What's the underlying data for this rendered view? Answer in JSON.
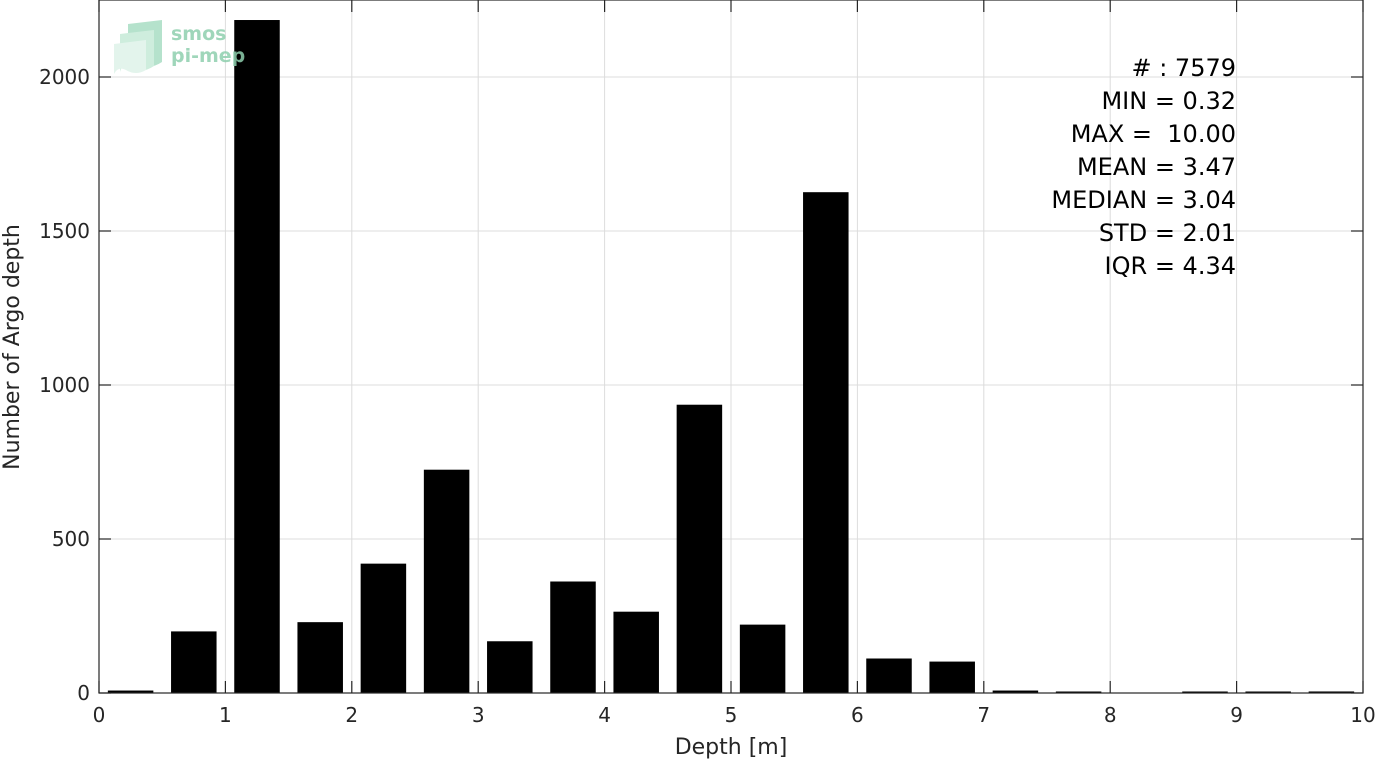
{
  "chart_data": {
    "type": "bar",
    "title": "",
    "xlabel": "Depth [m]",
    "ylabel": "Number of Argo depth",
    "xlim": [
      0,
      10
    ],
    "ylim": [
      0,
      2250
    ],
    "xticks": [
      0,
      1,
      2,
      3,
      4,
      5,
      6,
      7,
      8,
      9,
      10
    ],
    "yticks": [
      0,
      500,
      1000,
      1500,
      2000
    ],
    "grid": true,
    "bar_color": "#000000",
    "bin_width": 0.5,
    "bin_centers": [
      0.25,
      0.75,
      1.25,
      1.75,
      2.25,
      2.75,
      3.25,
      3.75,
      4.25,
      4.75,
      5.25,
      5.75,
      6.25,
      6.75,
      7.25,
      7.75,
      8.25,
      8.75,
      9.25,
      9.75
    ],
    "values": [
      8,
      200,
      2185,
      230,
      420,
      725,
      168,
      362,
      264,
      936,
      222,
      1626,
      112,
      102,
      8,
      3,
      0,
      2,
      2,
      5
    ]
  },
  "stats": [
    "# : 7579",
    "MIN = 0.32",
    "MAX =  10.00",
    "MEAN = 3.47",
    "MEDIAN = 3.04",
    "STD = 2.01",
    "IQR = 4.34"
  ],
  "logo": {
    "line1": "smos",
    "line2": "pi-mep",
    "color_light": "#8fcfae",
    "color_dark": "#3e8e6a"
  }
}
